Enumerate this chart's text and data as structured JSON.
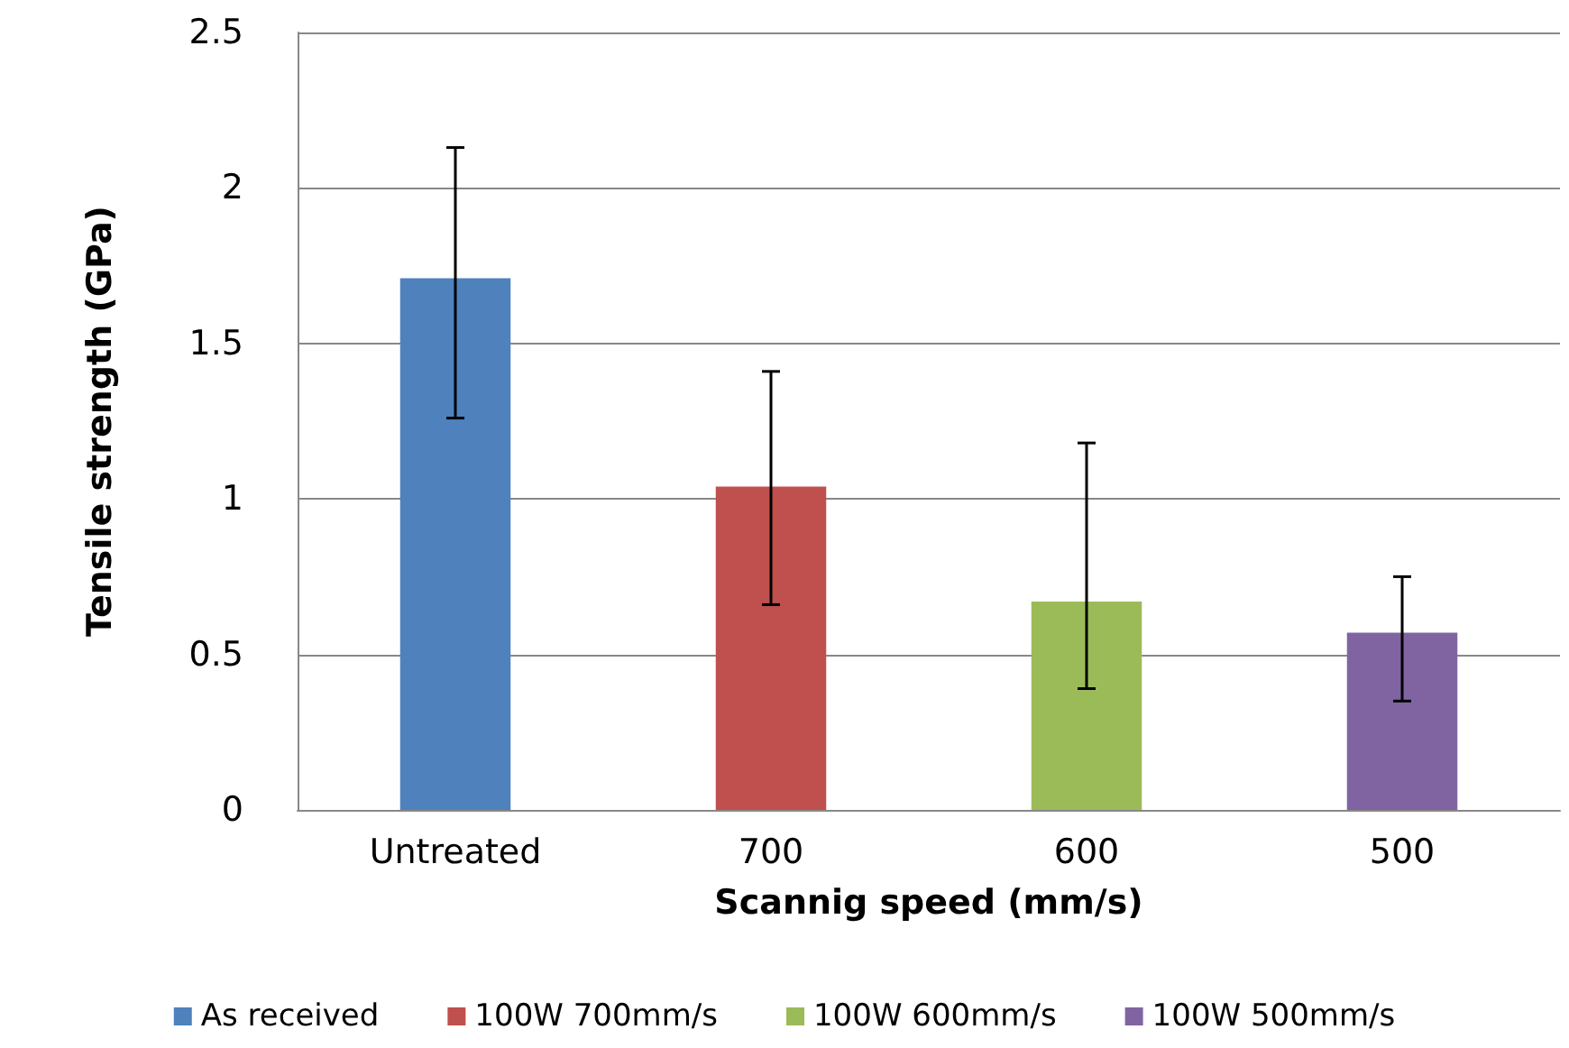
{
  "chart_data": {
    "type": "bar",
    "xlabel": "Scannig speed (mm/s)",
    "ylabel": "Tensile strength (GPa)",
    "categories": [
      "Untreated",
      "700",
      "600",
      "500"
    ],
    "series": [
      {
        "name": "As received",
        "color": "#4f81bd",
        "values": [
          1.71,
          null,
          null,
          null
        ],
        "errors": [
          [
            1.26,
            2.13
          ],
          null,
          null,
          null
        ]
      },
      {
        "name": "100W 700mm/s",
        "color": "#c0504d",
        "values": [
          null,
          1.04,
          null,
          null
        ],
        "errors": [
          null,
          [
            0.66,
            1.41
          ],
          null,
          null
        ]
      },
      {
        "name": "100W 600mm/s",
        "color": "#9bbb59",
        "values": [
          null,
          null,
          0.67,
          null
        ],
        "errors": [
          null,
          null,
          [
            0.39,
            1.18
          ],
          null
        ]
      },
      {
        "name": "100W 500mm/s",
        "color": "#8064a2",
        "values": [
          null,
          null,
          null,
          0.57
        ],
        "errors": [
          null,
          null,
          null,
          [
            0.35,
            0.75
          ]
        ]
      }
    ],
    "ylim": [
      0,
      2.5
    ],
    "yticks": [
      0,
      0.5,
      1,
      1.5,
      2,
      2.5
    ],
    "grid": "y",
    "legend": "bottom"
  }
}
